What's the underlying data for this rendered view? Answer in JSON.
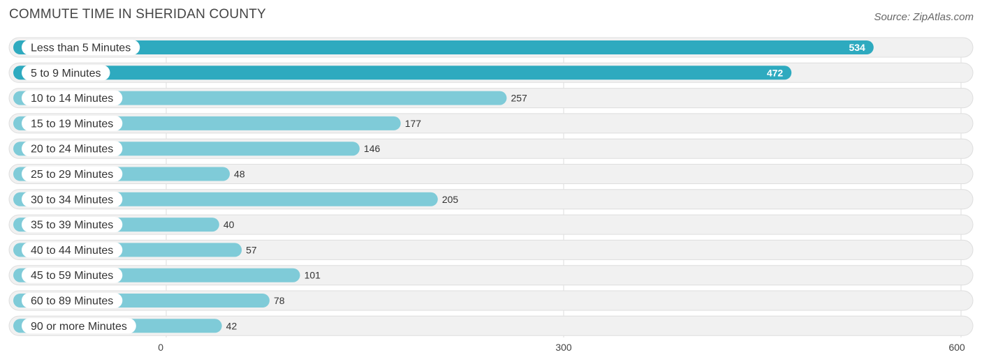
{
  "chart_data": {
    "type": "bar",
    "orientation": "horizontal",
    "title": "COMMUTE TIME IN SHERIDAN COUNTY",
    "source": "Source: ZipAtlas.com",
    "categories": [
      "Less than 5 Minutes",
      "5 to 9 Minutes",
      "10 to 14 Minutes",
      "15 to 19 Minutes",
      "20 to 24 Minutes",
      "25 to 29 Minutes",
      "30 to 34 Minutes",
      "35 to 39 Minutes",
      "40 to 44 Minutes",
      "45 to 59 Minutes",
      "60 to 89 Minutes",
      "90 or more Minutes"
    ],
    "values": [
      534,
      472,
      257,
      177,
      146,
      48,
      205,
      40,
      57,
      101,
      78,
      42
    ],
    "xlim": [
      0,
      600
    ],
    "xticks": [
      0,
      300,
      600
    ],
    "xlabel": "",
    "ylabel": "",
    "grid": true,
    "colors": {
      "strong": "#2eaabf",
      "light": "#7fcbd8"
    }
  }
}
